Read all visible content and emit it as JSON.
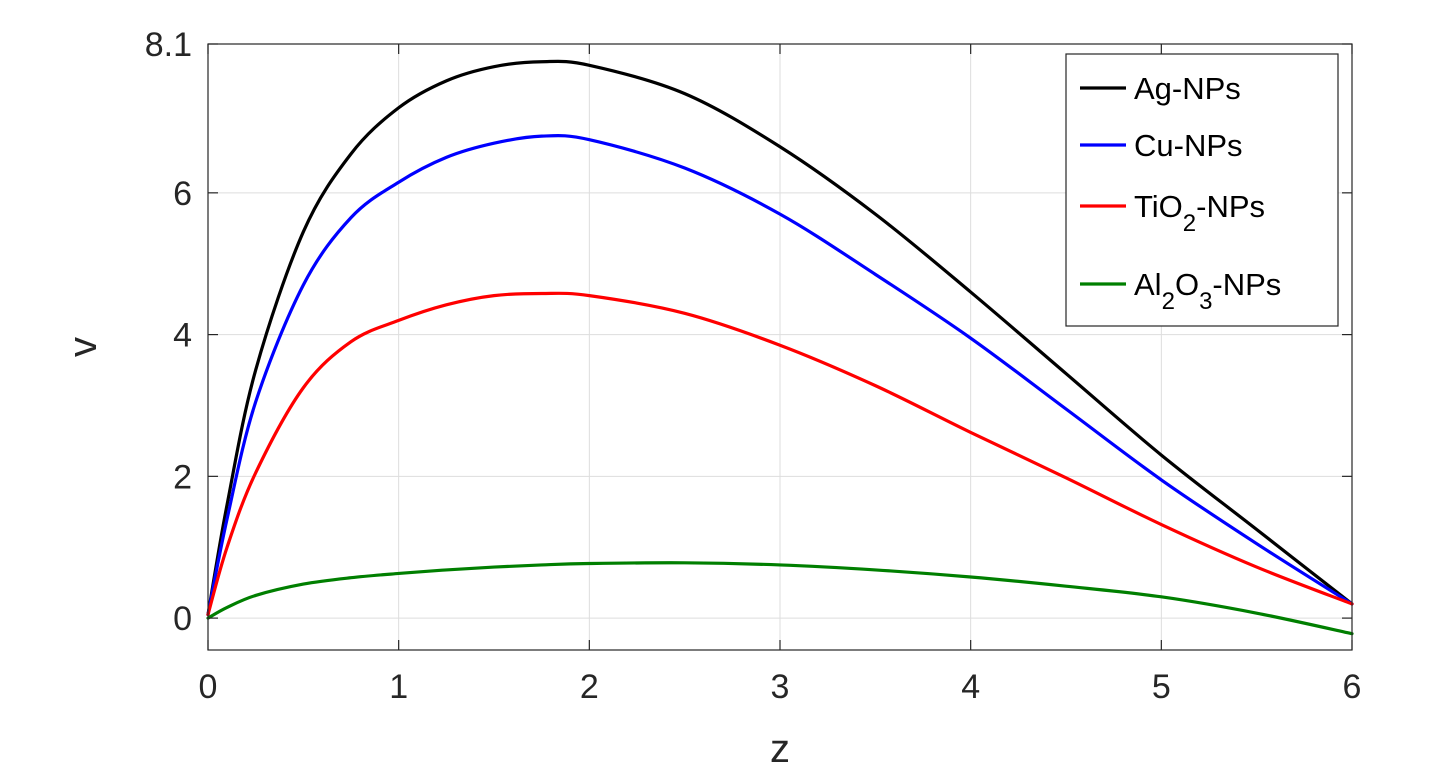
{
  "chart_data": {
    "type": "line",
    "title": "",
    "xlabel": "z",
    "ylabel": "v",
    "xlim": [
      0,
      6
    ],
    "ylim": [
      -0.45,
      8.1
    ],
    "x_ticks": [
      0,
      1,
      2,
      3,
      4,
      5,
      6
    ],
    "x_tick_labels": [
      "0",
      "1",
      "2",
      "3",
      "4",
      "5",
      "6"
    ],
    "y_ticks": [
      0,
      2,
      4,
      6,
      8.1
    ],
    "y_tick_labels": [
      "0",
      "2",
      "4",
      "6",
      "8.1"
    ],
    "grid": true,
    "legend_position": "top-right",
    "x": [
      0,
      0.1,
      0.25,
      0.5,
      0.75,
      1.0,
      1.25,
      1.5,
      1.75,
      2.0,
      2.5,
      3.0,
      3.5,
      4.0,
      4.5,
      5.0,
      5.5,
      6.0
    ],
    "series": [
      {
        "name": "Ag-NPs",
        "label_main": "Ag-NPs",
        "color": "#000000",
        "values": [
          0.05,
          1.6,
          3.5,
          5.45,
          6.55,
          7.2,
          7.58,
          7.78,
          7.85,
          7.8,
          7.4,
          6.65,
          5.7,
          4.6,
          3.45,
          2.3,
          1.25,
          0.2
        ]
      },
      {
        "name": "Cu-NPs",
        "label_main": "Cu-NPs",
        "color": "#0000ff",
        "values": [
          0.05,
          1.4,
          3.05,
          4.7,
          5.65,
          6.15,
          6.5,
          6.7,
          6.8,
          6.75,
          6.35,
          5.7,
          4.85,
          3.95,
          2.95,
          1.95,
          1.05,
          0.2
        ]
      },
      {
        "name": "TiO2-NPs",
        "label_main": "TiO",
        "label_sub": "2",
        "label_tail": "-NPs",
        "color": "#ff0000",
        "values": [
          0.05,
          1.0,
          2.05,
          3.25,
          3.9,
          4.2,
          4.42,
          4.55,
          4.58,
          4.55,
          4.3,
          3.85,
          3.28,
          2.62,
          1.98,
          1.32,
          0.72,
          0.2
        ]
      },
      {
        "name": "Al2O3-NPs",
        "label_main": "Al",
        "label_sub": "2",
        "label_mid": "O",
        "label_sub2": "3",
        "label_tail": "-NPs",
        "color": "#007f00",
        "values": [
          0.0,
          0.15,
          0.32,
          0.48,
          0.57,
          0.63,
          0.68,
          0.72,
          0.75,
          0.77,
          0.78,
          0.75,
          0.68,
          0.58,
          0.45,
          0.3,
          0.07,
          -0.22
        ]
      }
    ]
  }
}
